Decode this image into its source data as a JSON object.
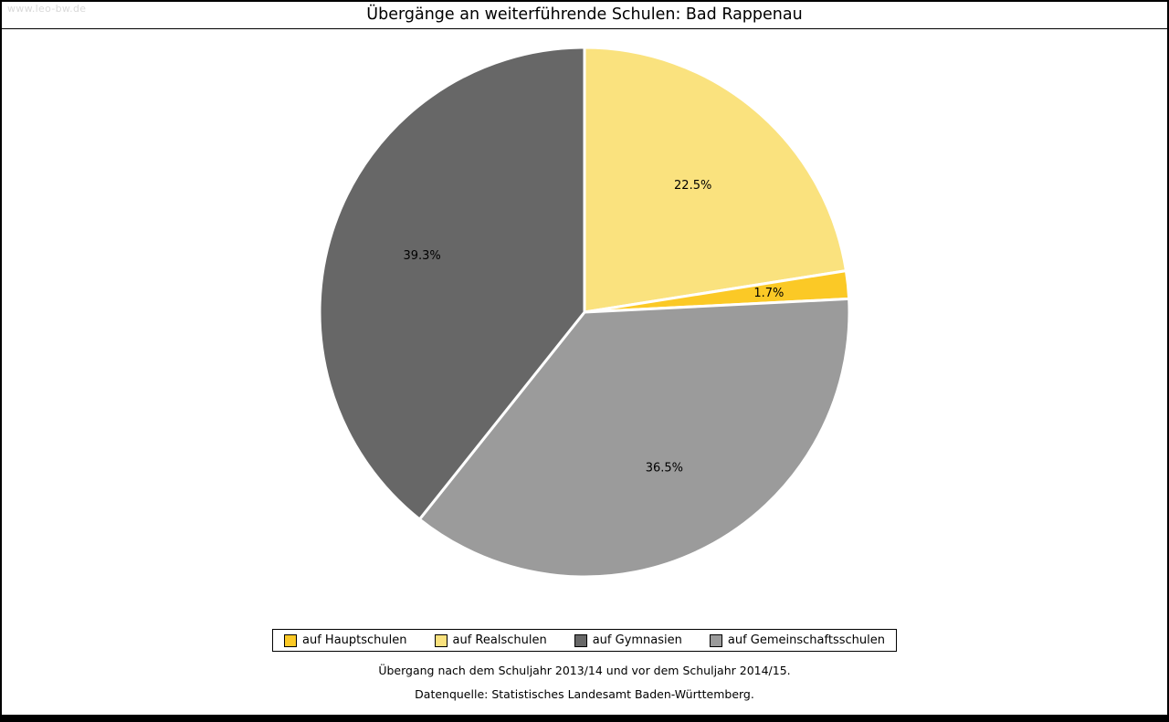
{
  "window": {
    "watermark": "www.leo-bw.de"
  },
  "chart_data": {
    "type": "pie",
    "title": "Übergänge an weiterführende Schulen: Bad Rappenau",
    "slices": [
      {
        "label": "auf Hauptschulen",
        "value": 1.7,
        "display": "1.7%",
        "color": "#FBC926",
        "label_r": 0.7
      },
      {
        "label": "auf Realschulen",
        "value": 22.5,
        "display": "22.5%",
        "color": "#FAE27E",
        "label_r": 0.63
      },
      {
        "label": "auf Gymnasien",
        "value": 39.3,
        "display": "39.3%",
        "color": "#676767",
        "label_r": 0.65
      },
      {
        "label": "auf Gemeinschaftsschulen",
        "value": 36.5,
        "display": "36.5%",
        "color": "#9B9B9B",
        "label_r": 0.66
      }
    ],
    "draw_order": [
      1,
      0,
      3,
      2
    ],
    "start_angle_deg": 0,
    "direction": "clockwise",
    "total": 100,
    "legend_position": "bottom",
    "labels_inside": true,
    "slice_separator_color": "#FFFFFF"
  },
  "footer": {
    "line1": "Übergang nach dem Schuljahr 2013/14 und vor dem Schuljahr 2014/15.",
    "line2": "Datenquelle: Statistisches Landesamt Baden-Württemberg."
  }
}
